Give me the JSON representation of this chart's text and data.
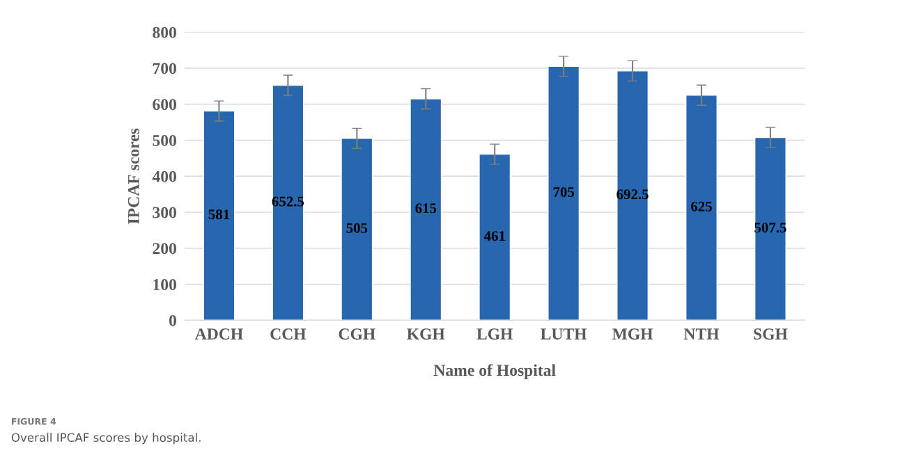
{
  "chart_data": {
    "type": "bar",
    "xlabel": "Name of Hospital",
    "ylabel": "IPCAF scores",
    "categories": [
      "ADCH",
      "CCH",
      "CGH",
      "KGH",
      "LGH",
      "LUTH",
      "MGH",
      "NTH",
      "SGH"
    ],
    "values": [
      581,
      652.5,
      505,
      615,
      461,
      705,
      692.5,
      625,
      507.5
    ],
    "errors": [
      28,
      28,
      28,
      28,
      28,
      28,
      28,
      28,
      28
    ],
    "color": "#2767b0",
    "ylim": [
      0,
      800
    ],
    "yticks": [
      0,
      100,
      200,
      300,
      400,
      500,
      600,
      700,
      800
    ],
    "grid": "y",
    "data_labels": true,
    "annotations": [
      "FIGURE 4",
      "Overall IPCAF scores by hospital."
    ]
  }
}
